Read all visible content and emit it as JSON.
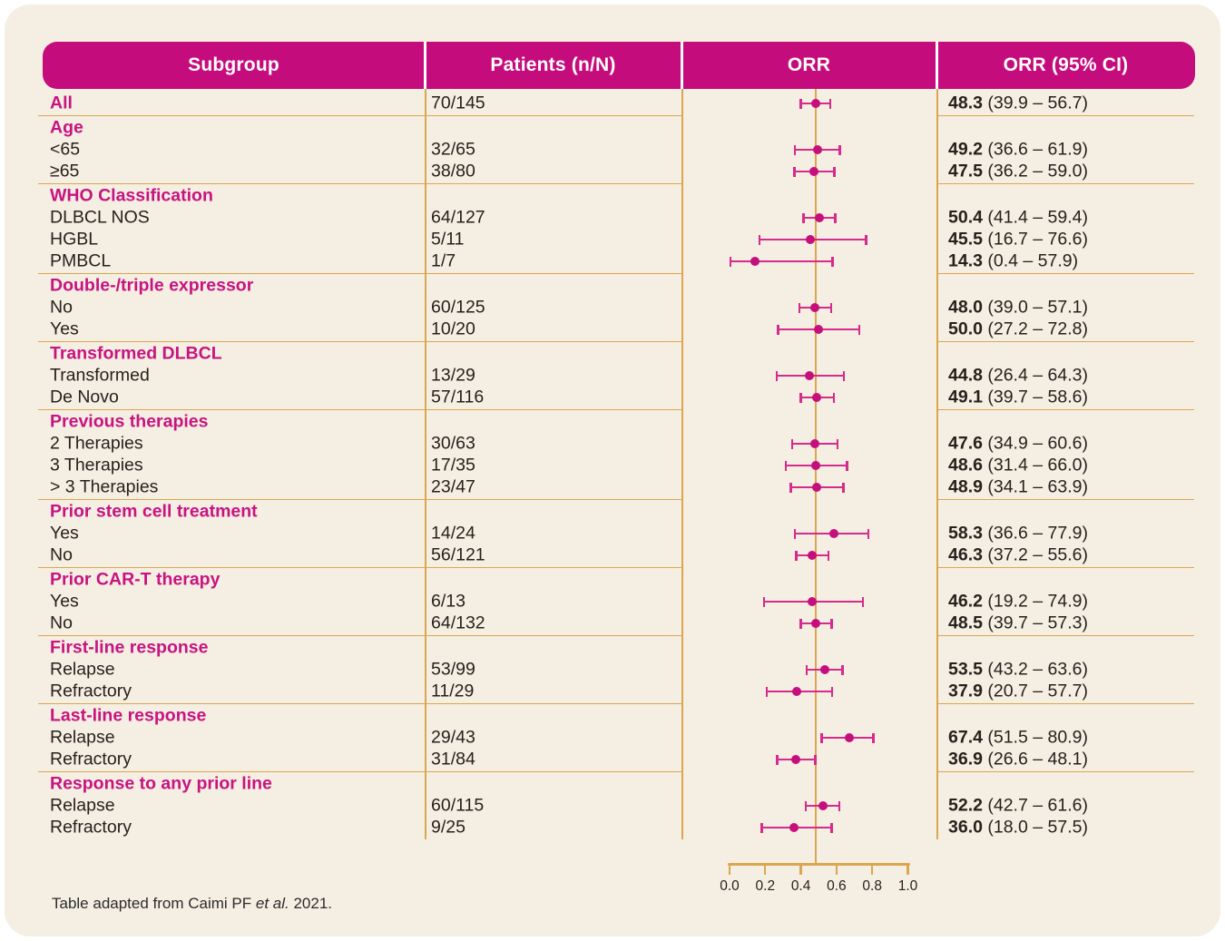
{
  "columns": {
    "subgroup": "Subgroup",
    "patients": "Patients (n/N)",
    "orr": "ORR",
    "orr_ci": "ORR (95% CI)"
  },
  "groups": [
    {
      "title": "",
      "rows": [
        {
          "label": "All",
          "highlight": true,
          "patients": "70/145",
          "orr": 48.3,
          "lo": 39.9,
          "hi": 56.7
        }
      ]
    },
    {
      "title": "Age",
      "rows": [
        {
          "label": "<65",
          "patients": "32/65",
          "orr": 49.2,
          "lo": 36.6,
          "hi": 61.9
        },
        {
          "label": "≥65",
          "patients": "38/80",
          "orr": 47.5,
          "lo": 36.2,
          "hi": 59.0
        }
      ]
    },
    {
      "title": "WHO Classification",
      "rows": [
        {
          "label": "DLBCL NOS",
          "patients": "64/127",
          "orr": 50.4,
          "lo": 41.4,
          "hi": 59.4
        },
        {
          "label": "HGBL",
          "patients": "5/11",
          "orr": 45.5,
          "lo": 16.7,
          "hi": 76.6
        },
        {
          "label": "PMBCL",
          "patients": "1/7",
          "orr": 14.3,
          "lo": 0.4,
          "hi": 57.9
        }
      ]
    },
    {
      "title": "Double-/triple expressor",
      "rows": [
        {
          "label": "No",
          "patients": "60/125",
          "orr": 48.0,
          "lo": 39.0,
          "hi": 57.1
        },
        {
          "label": "Yes",
          "patients": "10/20",
          "orr": 50.0,
          "lo": 27.2,
          "hi": 72.8
        }
      ]
    },
    {
      "title": "Transformed DLBCL",
      "rows": [
        {
          "label": "Transformed",
          "patients": "13/29",
          "orr": 44.8,
          "lo": 26.4,
          "hi": 64.3
        },
        {
          "label": "De Novo",
          "patients": "57/116",
          "orr": 49.1,
          "lo": 39.7,
          "hi": 58.6
        }
      ]
    },
    {
      "title": "Previous therapies",
      "rows": [
        {
          "label": "2 Therapies",
          "patients": "30/63",
          "orr": 47.6,
          "lo": 34.9,
          "hi": 60.6
        },
        {
          "label": "3 Therapies",
          "patients": "17/35",
          "orr": 48.6,
          "lo": 31.4,
          "hi": 66.0
        },
        {
          "label": "> 3 Therapies",
          "patients": "23/47",
          "orr": 48.9,
          "lo": 34.1,
          "hi": 63.9
        }
      ]
    },
    {
      "title": "Prior stem cell treatment",
      "rows": [
        {
          "label": "Yes",
          "patients": "14/24",
          "orr": 58.3,
          "lo": 36.6,
          "hi": 77.9
        },
        {
          "label": "No",
          "patients": "56/121",
          "orr": 46.3,
          "lo": 37.2,
          "hi": 55.6
        }
      ]
    },
    {
      "title": "Prior CAR-T therapy",
      "rows": [
        {
          "label": "Yes",
          "patients": "6/13",
          "orr": 46.2,
          "lo": 19.2,
          "hi": 74.9
        },
        {
          "label": "No",
          "patients": "64/132",
          "orr": 48.5,
          "lo": 39.7,
          "hi": 57.3
        }
      ]
    },
    {
      "title": "First-line response",
      "rows": [
        {
          "label": "Relapse",
          "patients": "53/99",
          "orr": 53.5,
          "lo": 43.2,
          "hi": 63.6
        },
        {
          "label": "Refractory",
          "patients": "11/29",
          "orr": 37.9,
          "lo": 20.7,
          "hi": 57.7
        }
      ]
    },
    {
      "title": "Last-line response",
      "rows": [
        {
          "label": "Relapse",
          "patients": "29/43",
          "orr": 67.4,
          "lo": 51.5,
          "hi": 80.9
        },
        {
          "label": "Refractory",
          "patients": "31/84",
          "orr": 36.9,
          "lo": 26.6,
          "hi": 48.1
        }
      ]
    },
    {
      "title": "Response to any prior line",
      "rows": [
        {
          "label": "Relapse",
          "patients": "60/115",
          "orr": 52.2,
          "lo": 42.7,
          "hi": 61.6
        },
        {
          "label": "Refractory",
          "patients": "9/25",
          "orr": 36.0,
          "lo": 18.0,
          "hi": 57.5
        }
      ]
    }
  ],
  "axis": {
    "ticks": [
      "0.0",
      "0.2",
      "0.4",
      "0.6",
      "0.8",
      "1.0"
    ]
  },
  "footer": {
    "prefix": "Table adapted from Caimi PF ",
    "italic": "et al.",
    "suffix": " 2021."
  },
  "colors": {
    "header_magenta": "#c50c7d",
    "title_pink": "#c81380",
    "bar_pink": "#d62a8c",
    "dot_magenta": "#c50f7c",
    "rule_tan": "#dba64f",
    "card_cream": "#f5efe3",
    "text_dark": "#26211c"
  },
  "chart_data": {
    "type": "scatter",
    "subtype": "forest-plot",
    "title": "ORR (95% CI) by subgroup",
    "xlabel": "ORR",
    "xlim": [
      0.0,
      1.0
    ],
    "x_ticks": [
      0.0,
      0.2,
      0.4,
      0.6,
      0.8,
      1.0
    ],
    "reference_line_x": 0.483,
    "grid": false,
    "legend": "none",
    "points": [
      {
        "subgroup": "All",
        "n": 70,
        "N": 145,
        "orr": 0.483,
        "ci_low": 0.399,
        "ci_high": 0.567
      },
      {
        "subgroup": "Age <65",
        "n": 32,
        "N": 65,
        "orr": 0.492,
        "ci_low": 0.366,
        "ci_high": 0.619
      },
      {
        "subgroup": "Age ≥65",
        "n": 38,
        "N": 80,
        "orr": 0.475,
        "ci_low": 0.362,
        "ci_high": 0.59
      },
      {
        "subgroup": "DLBCL NOS",
        "n": 64,
        "N": 127,
        "orr": 0.504,
        "ci_low": 0.414,
        "ci_high": 0.594
      },
      {
        "subgroup": "HGBL",
        "n": 5,
        "N": 11,
        "orr": 0.455,
        "ci_low": 0.167,
        "ci_high": 0.766
      },
      {
        "subgroup": "PMBCL",
        "n": 1,
        "N": 7,
        "orr": 0.143,
        "ci_low": 0.004,
        "ci_high": 0.579
      },
      {
        "subgroup": "Double-/triple expressor No",
        "n": 60,
        "N": 125,
        "orr": 0.48,
        "ci_low": 0.39,
        "ci_high": 0.571
      },
      {
        "subgroup": "Double-/triple expressor Yes",
        "n": 10,
        "N": 20,
        "orr": 0.5,
        "ci_low": 0.272,
        "ci_high": 0.728
      },
      {
        "subgroup": "Transformed",
        "n": 13,
        "N": 29,
        "orr": 0.448,
        "ci_low": 0.264,
        "ci_high": 0.643
      },
      {
        "subgroup": "De Novo",
        "n": 57,
        "N": 116,
        "orr": 0.491,
        "ci_low": 0.397,
        "ci_high": 0.586
      },
      {
        "subgroup": "2 Therapies",
        "n": 30,
        "N": 63,
        "orr": 0.476,
        "ci_low": 0.349,
        "ci_high": 0.606
      },
      {
        "subgroup": "3 Therapies",
        "n": 17,
        "N": 35,
        "orr": 0.486,
        "ci_low": 0.314,
        "ci_high": 0.66
      },
      {
        "subgroup": "> 3 Therapies",
        "n": 23,
        "N": 47,
        "orr": 0.489,
        "ci_low": 0.341,
        "ci_high": 0.639
      },
      {
        "subgroup": "Prior stem cell treatment Yes",
        "n": 14,
        "N": 24,
        "orr": 0.583,
        "ci_low": 0.366,
        "ci_high": 0.779
      },
      {
        "subgroup": "Prior stem cell treatment No",
        "n": 56,
        "N": 121,
        "orr": 0.463,
        "ci_low": 0.372,
        "ci_high": 0.556
      },
      {
        "subgroup": "Prior CAR-T therapy Yes",
        "n": 6,
        "N": 13,
        "orr": 0.462,
        "ci_low": 0.192,
        "ci_high": 0.749
      },
      {
        "subgroup": "Prior CAR-T therapy No",
        "n": 64,
        "N": 132,
        "orr": 0.485,
        "ci_low": 0.397,
        "ci_high": 0.573
      },
      {
        "subgroup": "First-line response Relapse",
        "n": 53,
        "N": 99,
        "orr": 0.535,
        "ci_low": 0.432,
        "ci_high": 0.636
      },
      {
        "subgroup": "First-line response Refractory",
        "n": 11,
        "N": 29,
        "orr": 0.379,
        "ci_low": 0.207,
        "ci_high": 0.577
      },
      {
        "subgroup": "Last-line response Relapse",
        "n": 29,
        "N": 43,
        "orr": 0.674,
        "ci_low": 0.515,
        "ci_high": 0.809
      },
      {
        "subgroup": "Last-line response Refractory",
        "n": 31,
        "N": 84,
        "orr": 0.369,
        "ci_low": 0.266,
        "ci_high": 0.481
      },
      {
        "subgroup": "Response to any prior line Relapse",
        "n": 60,
        "N": 115,
        "orr": 0.522,
        "ci_low": 0.427,
        "ci_high": 0.616
      },
      {
        "subgroup": "Response to any prior line Refractory",
        "n": 9,
        "N": 25,
        "orr": 0.36,
        "ci_low": 0.18,
        "ci_high": 0.575
      }
    ]
  }
}
